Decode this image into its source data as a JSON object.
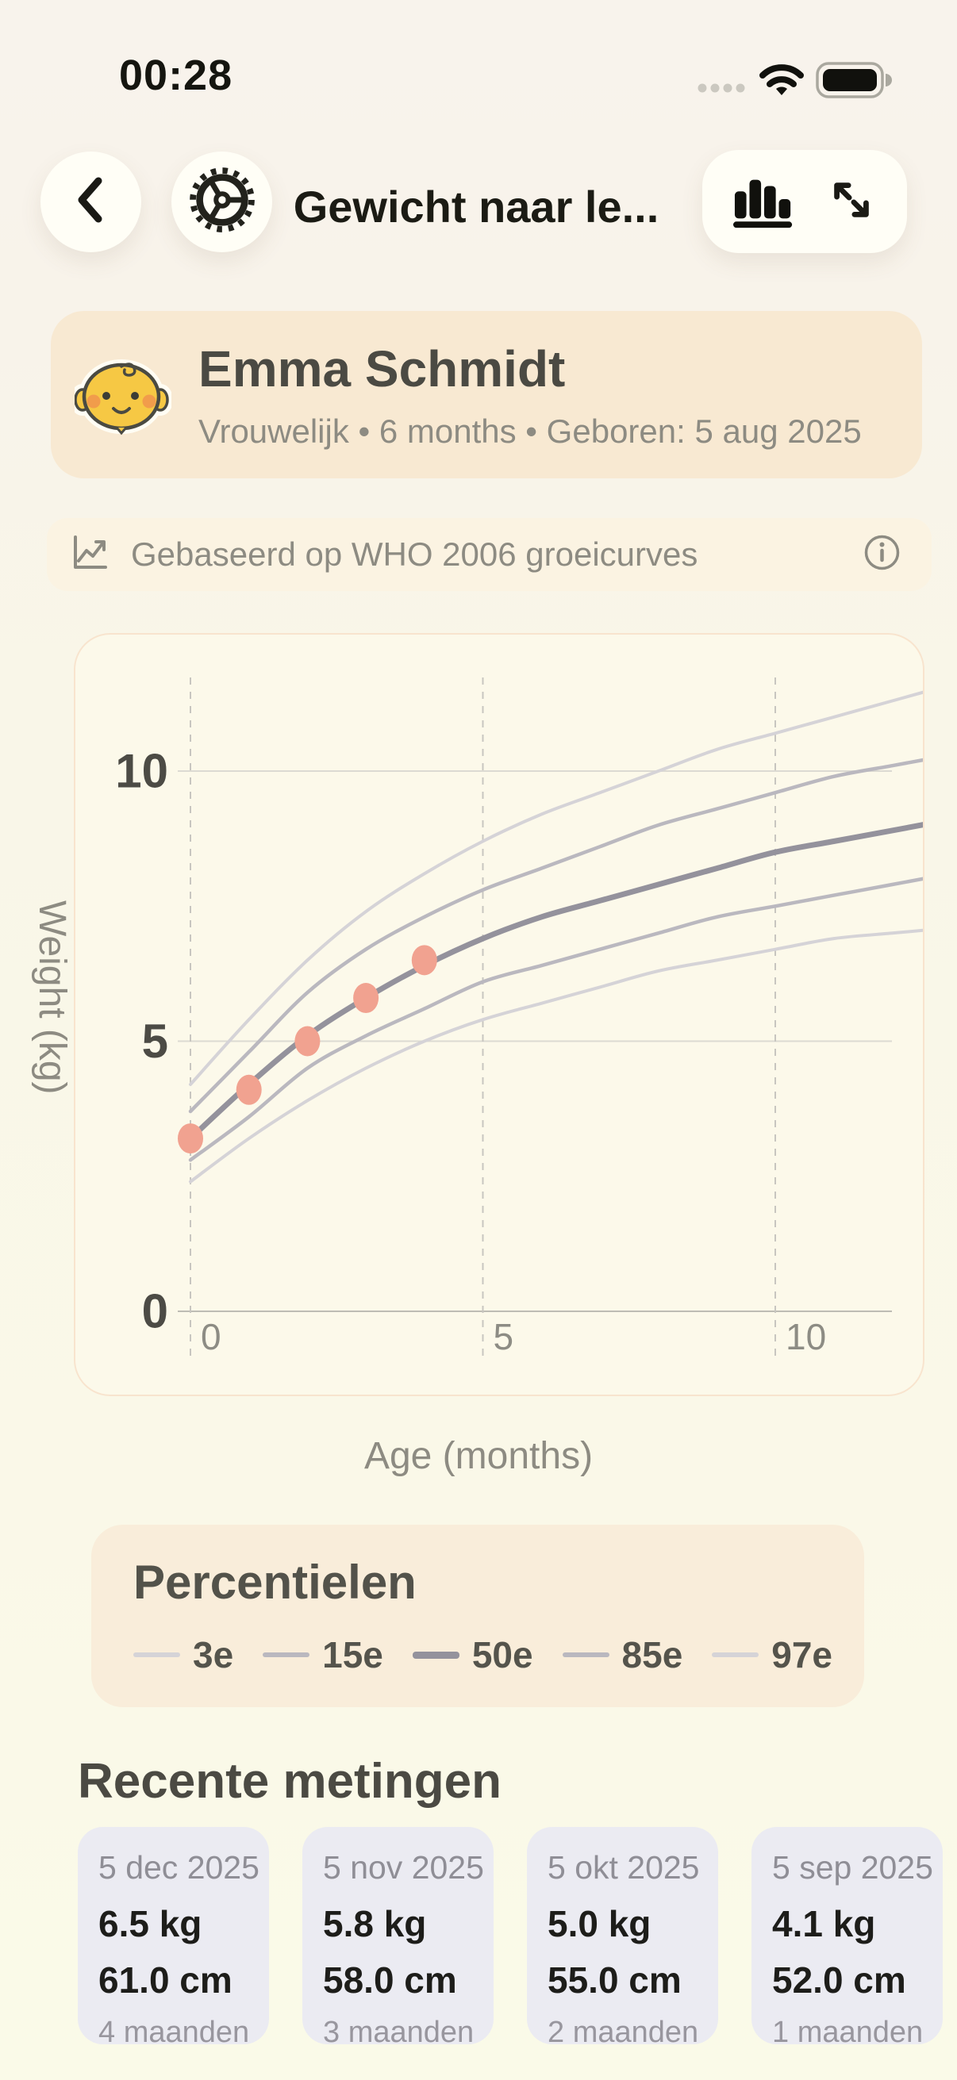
{
  "status_bar": {
    "time": "00:28"
  },
  "header": {
    "title": "Gewicht naar le..."
  },
  "patient": {
    "name": "Emma Schmidt",
    "details": "Vrouwelijk • 6 months • Geboren: 5 aug 2025"
  },
  "info_banner": {
    "text": "Gebaseerd op WHO 2006 groeicurves"
  },
  "chart_data": {
    "type": "line",
    "title": "",
    "xlabel": "Age (months)",
    "ylabel": "Weight (kg)",
    "xlim": [
      0,
      12.6
    ],
    "ylim": [
      0,
      12.6
    ],
    "x_ticks": [
      0,
      5,
      10
    ],
    "y_ticks": [
      0,
      5,
      10
    ],
    "grid": true,
    "x": [
      0,
      1,
      2,
      3,
      4,
      5,
      6,
      7,
      8,
      9,
      10,
      11,
      12
    ],
    "series": [
      {
        "name": "3e",
        "color": "#d5d3d7",
        "width": 4,
        "values": [
          2.4,
          3.2,
          3.9,
          4.5,
          5.0,
          5.4,
          5.7,
          6.0,
          6.3,
          6.5,
          6.7,
          6.9,
          7.0
        ]
      },
      {
        "name": "15e",
        "color": "#bab8bf",
        "width": 4.5,
        "values": [
          2.8,
          3.6,
          4.5,
          5.1,
          5.6,
          6.1,
          6.4,
          6.7,
          7.0,
          7.3,
          7.5,
          7.7,
          7.9
        ]
      },
      {
        "name": "50e",
        "color": "#94929c",
        "width": 7,
        "values": [
          3.2,
          4.2,
          5.1,
          5.8,
          6.4,
          6.9,
          7.3,
          7.6,
          7.9,
          8.2,
          8.5,
          8.7,
          8.9
        ]
      },
      {
        "name": "85e",
        "color": "#bab8bf",
        "width": 4.5,
        "values": [
          3.7,
          4.8,
          5.9,
          6.7,
          7.3,
          7.8,
          8.2,
          8.6,
          9.0,
          9.3,
          9.6,
          9.9,
          10.1
        ]
      },
      {
        "name": "97e",
        "color": "#d5d3d7",
        "width": 4,
        "values": [
          4.2,
          5.4,
          6.5,
          7.4,
          8.1,
          8.7,
          9.2,
          9.6,
          10.0,
          10.4,
          10.7,
          11.0,
          11.3
        ]
      }
    ],
    "patient_points": {
      "color": "#f1a290",
      "points": [
        {
          "x": 0,
          "y": 3.2
        },
        {
          "x": 1,
          "y": 4.1
        },
        {
          "x": 2,
          "y": 5.0
        },
        {
          "x": 3,
          "y": 5.8
        },
        {
          "x": 4,
          "y": 6.5
        }
      ]
    }
  },
  "legend": {
    "title": "Percentielen",
    "items": [
      {
        "label": "3e",
        "color": "#d5d3d7",
        "thick": false
      },
      {
        "label": "15e",
        "color": "#bab8bf",
        "thick": false
      },
      {
        "label": "50e",
        "color": "#94929c",
        "thick": true
      },
      {
        "label": "85e",
        "color": "#bab8bf",
        "thick": false
      },
      {
        "label": "97e",
        "color": "#d5d3d7",
        "thick": false
      }
    ]
  },
  "measurements": {
    "title": "Recente metingen",
    "cards": [
      {
        "date": "5 dec 2025",
        "weight": "6.5 kg",
        "length": "61.0 cm",
        "age": "4 maanden"
      },
      {
        "date": "5 nov 2025",
        "weight": "5.8 kg",
        "length": "58.0 cm",
        "age": "3 maanden"
      },
      {
        "date": "5 okt 2025",
        "weight": "5.0 kg",
        "length": "55.0 cm",
        "age": "2 maanden"
      },
      {
        "date": "5 sep 2025",
        "weight": "4.1 kg",
        "length": "52.0 cm",
        "age": "1 maanden"
      }
    ]
  },
  "colors": {
    "page_background": "#f9f6e8",
    "patient_card": "#f8e9d2",
    "info_banner": "#fbf3e2",
    "chart_card": "#fcf9ea",
    "chart_card_border": "#f8e4ce",
    "legend_card": "#f9edda",
    "measurement_card": "#ebebf2",
    "accent_point": "#f1a290",
    "text_dark": "#1d1d1a",
    "text_heading": "#4b4a43",
    "text_muted": "#8d8b82",
    "grid_line": "#dcdad2",
    "grid_axis": "#bebcb4",
    "grid_dash": "#c8c6c0"
  }
}
